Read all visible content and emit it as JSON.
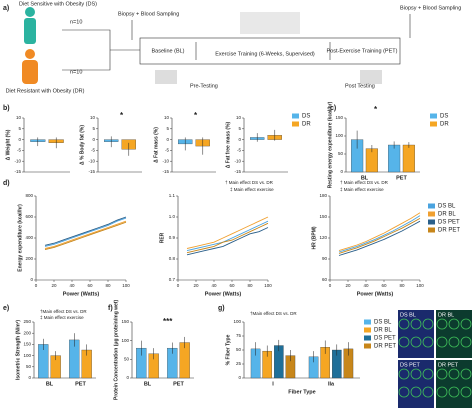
{
  "diagram": {
    "panel": "a)",
    "group1": "Diet Sensitive with Obesity (DS)",
    "n1": "n=10",
    "group2": "Diet Resistant with Obesity (DR)",
    "n2": "n=10",
    "biopsy1": "Biopsy + Blood Sampling",
    "baseline": "Baseline (BL)",
    "pretest": "Pre-Testing",
    "training": "Exercise Training (6-Weeks, Supervised)",
    "post": "Post-Exercise Training (PET)",
    "posttest": "Post Testing",
    "biopsy2": "Biopsy + Blood Sampling"
  },
  "images": {
    "labels": [
      "DS BL",
      "DR BL",
      "DS PET",
      "DR PET"
    ]
  },
  "chart_data": [
    {
      "type": "bar",
      "panel": "b)",
      "ylabel": "Δ Weight (%)",
      "categories": [
        null
      ],
      "ylim": [
        -15,
        10
      ],
      "yticks": [
        -15,
        -10,
        -5,
        0,
        5,
        10
      ],
      "series": [
        {
          "name": "DS",
          "color": "#56b4e9",
          "values": [
            -1
          ],
          "errors": [
            2
          ]
        },
        {
          "name": "DR",
          "color": "#f5a623",
          "values": [
            -1.5
          ],
          "errors": [
            2.5
          ]
        }
      ],
      "annotations": []
    },
    {
      "type": "bar",
      "ylabel": "Δ % Body fat (%)",
      "categories": [
        null
      ],
      "ylim": [
        -15,
        10
      ],
      "yticks": [
        -15,
        -10,
        -5,
        0,
        5,
        10
      ],
      "series": [
        {
          "name": "DS",
          "color": "#56b4e9",
          "values": [
            -1
          ],
          "errors": [
            2.5
          ]
        },
        {
          "name": "DR",
          "color": "#f5a623",
          "values": [
            -4.5
          ],
          "errors": [
            3
          ]
        }
      ],
      "annotations": [
        "*"
      ]
    },
    {
      "type": "bar",
      "ylabel": "Δ Fat mass (%)",
      "categories": [
        null
      ],
      "ylim": [
        -15,
        10
      ],
      "yticks": [
        -15,
        -10,
        -5,
        0,
        5,
        10
      ],
      "series": [
        {
          "name": "DS",
          "color": "#56b4e9",
          "values": [
            -2
          ],
          "errors": [
            3
          ]
        },
        {
          "name": "DR",
          "color": "#f5a623",
          "values": [
            -3
          ],
          "errors": [
            4
          ]
        }
      ],
      "annotations": [
        "*"
      ]
    },
    {
      "type": "bar",
      "ylabel": "Δ Fat free mass (%)",
      "categories": [
        null
      ],
      "ylim": [
        -15,
        10
      ],
      "yticks": [
        -15,
        -10,
        -5,
        0,
        5,
        10
      ],
      "legend": true,
      "series": [
        {
          "name": "DS",
          "color": "#56b4e9",
          "values": [
            1
          ],
          "errors": [
            2
          ]
        },
        {
          "name": "DR",
          "color": "#f5a623",
          "values": [
            2
          ],
          "errors": [
            2.5
          ]
        }
      ],
      "annotations": []
    },
    {
      "type": "bar",
      "panel": "c)",
      "ylabel": "Resting energy expenditure (kcal/hr)",
      "categories": [
        "BL",
        "PET"
      ],
      "ylim": [
        0,
        150
      ],
      "yticks": [
        0,
        50,
        100,
        150
      ],
      "legend": true,
      "series": [
        {
          "name": "DS",
          "color": "#56b4e9",
          "values": [
            90,
            75
          ],
          "errors": [
            25,
            10
          ]
        },
        {
          "name": "DR",
          "color": "#f5a623",
          "values": [
            65,
            75
          ],
          "errors": [
            10,
            8
          ]
        }
      ],
      "annotations": [
        "*"
      ]
    },
    {
      "type": "line",
      "panel": "d)",
      "ylabel": "Energy expenditure (kcal/hr)",
      "xlabel": "Power (Watts)",
      "x": [
        10,
        20,
        30,
        40,
        50,
        60,
        70,
        80,
        90,
        100
      ],
      "xlim": [
        0,
        100
      ],
      "xticks": [
        0,
        20,
        40,
        60,
        80,
        100
      ],
      "ylim": [
        0,
        800
      ],
      "yticks": [
        0,
        200,
        400,
        600,
        800
      ],
      "series": [
        {
          "name": "DS BL",
          "color": "#4aa3df",
          "values": [
            320,
            340,
            370,
            400,
            430,
            460,
            490,
            520,
            560,
            590
          ]
        },
        {
          "name": "DR BL",
          "color": "#f0a030",
          "values": [
            300,
            320,
            350,
            380,
            410,
            440,
            470,
            500,
            530,
            560
          ]
        },
        {
          "name": "DS PET",
          "color": "#2a5f8a",
          "values": [
            330,
            350,
            380,
            410,
            440,
            470,
            500,
            530,
            570,
            600
          ]
        },
        {
          "name": "DR PET",
          "color": "#c7861a",
          "values": [
            290,
            310,
            340,
            370,
            400,
            430,
            460,
            490,
            520,
            550
          ]
        }
      ],
      "annotations": []
    },
    {
      "type": "line",
      "ylabel": "RER",
      "xlabel": "Power (Watts)",
      "x": [
        10,
        20,
        30,
        40,
        50,
        60,
        70,
        80,
        90,
        100
      ],
      "xlim": [
        0,
        100
      ],
      "xticks": [
        0,
        20,
        40,
        60,
        80,
        100
      ],
      "ylim": [
        0.7,
        1.1
      ],
      "yticks": [
        0.7,
        0.8,
        0.9,
        {
          "value": 1,
          "label": "1.0"
        },
        1.1
      ],
      "series": [
        {
          "name": "DS BL",
          "color": "#4aa3df",
          "values": [
            0.84,
            0.85,
            0.86,
            0.87,
            0.88,
            0.9,
            0.92,
            0.94,
            0.96,
            0.98
          ]
        },
        {
          "name": "DR BL",
          "color": "#f0a030",
          "values": [
            0.85,
            0.86,
            0.87,
            0.88,
            0.9,
            0.92,
            0.94,
            0.96,
            0.98,
            1
          ]
        },
        {
          "name": "DS PET",
          "color": "#2a5f8a",
          "values": [
            0.82,
            0.83,
            0.84,
            0.85,
            0.86,
            0.88,
            0.9,
            0.92,
            0.93,
            0.95
          ]
        },
        {
          "name": "DR PET",
          "color": "#c7861a",
          "values": [
            0.83,
            0.84,
            0.85,
            0.86,
            0.88,
            0.89,
            0.91,
            0.93,
            0.95,
            0.97
          ]
        }
      ],
      "annotations": [
        "† Main effect DS vs. DR",
        "‡ Main effect exercise"
      ]
    },
    {
      "type": "line",
      "ylabel": "HR (BPM)",
      "xlabel": "Power (Watts)",
      "x": [
        10,
        20,
        30,
        40,
        50,
        60,
        70,
        80,
        90,
        100
      ],
      "xlim": [
        0,
        100
      ],
      "xticks": [
        0,
        20,
        40,
        60,
        80,
        100
      ],
      "ylim": [
        60,
        180
      ],
      "yticks": [
        60,
        90,
        120,
        150,
        180
      ],
      "legend": true,
      "series": [
        {
          "name": "DS BL",
          "color": "#4aa3df",
          "values": [
            100,
            104,
            108,
            113,
            118,
            124,
            130,
            137,
            144,
            152
          ]
        },
        {
          "name": "DR BL",
          "color": "#f0a030",
          "values": [
            102,
            106,
            110,
            115,
            121,
            127,
            134,
            141,
            148,
            156
          ]
        },
        {
          "name": "DS PET",
          "color": "#2a5f8a",
          "values": [
            95,
            99,
            103,
            108,
            113,
            118,
            124,
            130,
            137,
            144
          ]
        },
        {
          "name": "DR PET",
          "color": "#c7861a",
          "values": [
            98,
            102,
            106,
            111,
            116,
            122,
            128,
            134,
            141,
            148
          ]
        }
      ],
      "annotations": [
        "† Main effect DS vs. DR",
        "‡ Main effect exercise"
      ]
    },
    {
      "type": "bar",
      "panel": "e)",
      "ylabel": "Isometric Strength (N/m²)",
      "categories": [
        "BL",
        "PET"
      ],
      "ylim": [
        0,
        250
      ],
      "yticks": [
        0,
        50,
        100,
        150,
        200,
        250
      ],
      "series": [
        {
          "name": "DS",
          "color": "#56b4e9",
          "values": [
            150,
            170
          ],
          "errors": [
            25,
            30
          ]
        },
        {
          "name": "DR",
          "color": "#f5a623",
          "values": [
            100,
            125
          ],
          "errors": [
            20,
            25
          ]
        }
      ],
      "annotations": [
        "†Main effect DS vs. DR",
        "‡ Main effect exercise"
      ]
    },
    {
      "type": "bar",
      "panel": "f)",
      "ylabel": "Protein Concentration (μg protein/mg wet)",
      "categories": [
        "BL",
        "PET"
      ],
      "ylim": [
        0,
        150
      ],
      "yticks": [
        0,
        50,
        100,
        150
      ],
      "series": [
        {
          "name": "DS",
          "color": "#56b4e9",
          "values": [
            80,
            80
          ],
          "errors": [
            20,
            15
          ]
        },
        {
          "name": "DR",
          "color": "#f5a623",
          "values": [
            65,
            95
          ],
          "errors": [
            15,
            15
          ]
        }
      ],
      "annotations": [
        "***"
      ]
    },
    {
      "type": "bar",
      "panel": "g)",
      "ylabel": "% Fiber Type",
      "xlabel": "Fiber Type",
      "categories": [
        "I",
        "IIa"
      ],
      "ylim": [
        0,
        100
      ],
      "yticks": [
        0,
        25,
        50,
        75,
        100
      ],
      "legend": true,
      "series": [
        {
          "name": "DS BL",
          "color": "#56b4e9",
          "values": [
            52,
            38
          ],
          "errors": [
            12,
            10
          ]
        },
        {
          "name": "DR BL",
          "color": "#f5a623",
          "values": [
            48,
            55
          ],
          "errors": [
            10,
            12
          ]
        },
        {
          "name": "DS PET",
          "color": "#1f6f99",
          "values": [
            58,
            50
          ],
          "errors": [
            10,
            10
          ]
        },
        {
          "name": "DR PET",
          "color": "#c7861a",
          "values": [
            40,
            52
          ],
          "errors": [
            10,
            12
          ]
        }
      ],
      "annotations": [
        "†Main effect DS vs. DR"
      ]
    }
  ]
}
